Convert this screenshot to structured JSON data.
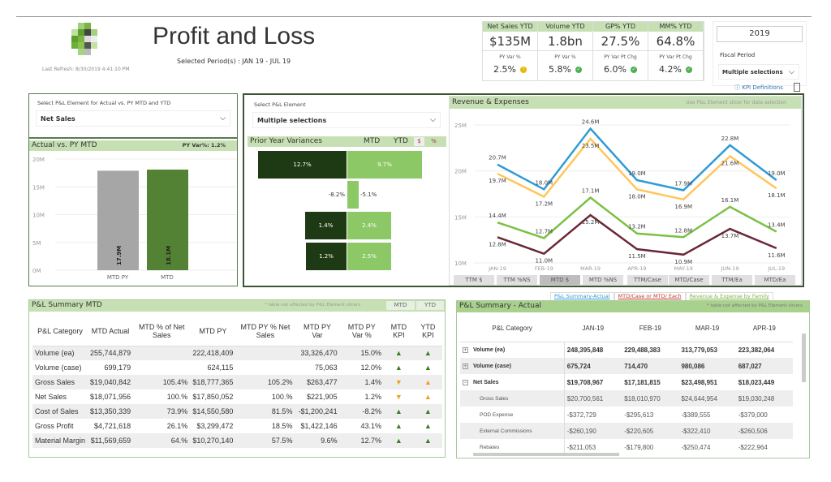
{
  "header": {
    "title": "Profit and Loss",
    "selected_period": "Selected Period(s) :  JAN 19 - JUL 19",
    "last_refresh": "Last Refresh: 8/30/2019 4:41:10 PM"
  },
  "kpis": [
    {
      "label": "Net Sales YTD",
      "value": "$135M",
      "sub": "PY Var %",
      "change": "2.5%",
      "status": "warning",
      "status_color": "#e8b800"
    },
    {
      "label": "Volume YTD",
      "value": "1.8bn",
      "sub": "PY Var %",
      "change": "5.8%",
      "status": "ok",
      "status_color": "#4caf50"
    },
    {
      "label": "GP% YTD",
      "value": "27.5%",
      "sub": "PY Var Pt Chg",
      "change": "6.0%",
      "status": "ok",
      "status_color": "#4caf50"
    },
    {
      "label": "MM% YTD",
      "value": "64.8%",
      "sub": "PY Var Pt Chg",
      "change": "4.2%",
      "status": "ok",
      "status_color": "#4caf50"
    }
  ],
  "filters": {
    "year": "2019",
    "fiscal_period_label": "Fiscal Period",
    "fiscal_period_value": "Multiple selections",
    "kpi_definitions": "KPI Definitions"
  },
  "actual_vs_py": {
    "slicer_label": "Select P&L Element for Actual vs. PY MTD and YTD",
    "slicer_value": "Net Sales",
    "title": "Actual vs. PY MTD",
    "py_var": "PY Var%: 1.2%"
  },
  "variances": {
    "slicer_label": "Select P&L Element",
    "slicer_value": "Multiple selections",
    "title": "Prior Year Variances",
    "col_mtd": "MTD",
    "col_ytd": "YTD",
    "toggle_dollar": "$",
    "toggle_pct": "%",
    "rows": [
      {
        "mtd": "12.7%",
        "ytd": "9.7%"
      },
      {
        "mtd": "-8.2%",
        "ytd": "-5.1%"
      },
      {
        "mtd": "1.4%",
        "ytd": "2.4%"
      },
      {
        "mtd": "1.2%",
        "ytd": "2.5%"
      }
    ]
  },
  "revenue": {
    "title": "Revenue & Expenses",
    "note": "Use P&L Element slicer for data selection",
    "buttons": [
      "TTM $",
      "TTM %NS",
      "MTD $",
      "MTD %NS",
      "TTM/Case",
      "MTD/Case",
      "TTM/Ea",
      "MTD/Ea"
    ],
    "active_button": "MTD $"
  },
  "chart_data": [
    {
      "type": "bar",
      "categories": [
        "MTD PY",
        "MTD"
      ],
      "values": [
        17.9,
        18.1
      ],
      "data_labels": [
        "17.9M",
        "18.1M"
      ],
      "y_ticks": [
        "0M",
        "5M",
        "10M",
        "15M",
        "20M"
      ],
      "ylim": [
        0,
        20
      ],
      "colors": [
        "#a6a6a6",
        "#548235"
      ],
      "grid": true
    },
    {
      "type": "line",
      "categories": [
        "JAN-19",
        "FEB-19",
        "MAR-19",
        "APR-19",
        "MAY-19",
        "JUN-19",
        "JUL-19"
      ],
      "y_ticks": [
        "10M",
        "15M",
        "20M",
        "25M"
      ],
      "ylim": [
        10,
        25
      ],
      "grid": true,
      "series": [
        {
          "values": [
            20.7,
            18.0,
            24.6,
            19.0,
            17.9,
            22.8,
            19.0
          ],
          "color": "#2e9bd6"
        },
        {
          "values": [
            19.7,
            17.2,
            23.5,
            18.0,
            16.9,
            21.6,
            18.1
          ],
          "color": "#ffc65c"
        },
        {
          "values": [
            14.4,
            12.7,
            17.1,
            13.2,
            12.8,
            16.1,
            13.4
          ],
          "color": "#7bc143"
        },
        {
          "values": [
            12.8,
            11.0,
            15.2,
            11.5,
            10.9,
            13.7,
            11.6
          ],
          "color": "#6b2737"
        }
      ]
    }
  ],
  "mtd_table": {
    "title": "P&L Summary MTD",
    "note": "* table not affected by P&L Element slicers",
    "tab_mtd": "MTD",
    "tab_ytd": "YTD",
    "headers": [
      "P&L Category",
      "MTD Actual",
      "MTD % of Net Sales",
      "MTD PY",
      "MTD PY % Net Sales",
      "MTD PY Var",
      "MTD PY Var %",
      "MTD KPI",
      "YTD KPI"
    ],
    "rows": [
      [
        "Volume (ea)",
        "255,744,879",
        "",
        "222,418,409",
        "",
        "33,326,470",
        "15.0%",
        "up",
        "up"
      ],
      [
        "Volume (case)",
        "699,179",
        "",
        "624,115",
        "",
        "75,063",
        "12.0%",
        "up",
        "up"
      ],
      [
        "Gross Sales",
        "$19,040,842",
        "105.4%",
        "$18,777,365",
        "105.2%",
        "$263,477",
        "1.4%",
        "down",
        "up-warn"
      ],
      [
        "Net Sales",
        "$18,071,956",
        "100.%",
        "$17,850,052",
        "100.%",
        "$221,905",
        "1.2%",
        "down",
        "up-warn"
      ],
      [
        "Cost of Sales",
        "$13,350,339",
        "73.9%",
        "$14,550,580",
        "81.5%",
        "-$1,200,241",
        "-8.2%",
        "up",
        "up"
      ],
      [
        "Gross Profit",
        "$4,721,618",
        "26.1%",
        "$3,299,472",
        "18.5%",
        "$1,422,146",
        "43.1%",
        "up",
        "up"
      ],
      [
        "Material Margin",
        "$11,569,659",
        "64.%",
        "$10,270,140",
        "57.5%",
        "9.6%",
        "12.7%",
        "up",
        "up"
      ]
    ]
  },
  "actual_table": {
    "tabs": [
      "P&L Summary-Actual",
      "MTD/Case or MTD/ Each",
      "Revenue & Expense by Family"
    ],
    "title": "P&L Summary - Actual",
    "note": "* table not affected by P&L Element slicers",
    "headers": [
      "P&L Category",
      "JAN-19",
      "FEB-19",
      "MAR-19",
      "APR-19"
    ],
    "rows": [
      {
        "cat": "Volume (ea)",
        "bold": true,
        "expand": "+",
        "vals": [
          "248,395,848",
          "229,488,383",
          "313,779,053",
          "223,382,064"
        ]
      },
      {
        "cat": "Volume (case)",
        "bold": true,
        "expand": "+",
        "vals": [
          "675,724",
          "714,470",
          "980,086",
          "687,027"
        ]
      },
      {
        "cat": "Net Sales",
        "bold": true,
        "expand": "−",
        "vals": [
          "$19,708,967",
          "$17,181,815",
          "$23,498,951",
          "$18,023,449"
        ]
      },
      {
        "cat": "Gross Sales",
        "bold": false,
        "expand": "",
        "vals": [
          "$20,700,561",
          "$18,010,970",
          "$24,644,954",
          "$19,030,248"
        ]
      },
      {
        "cat": "POD Expense",
        "bold": false,
        "expand": "",
        "vals": [
          "-$372,729",
          "-$295,613",
          "-$389,555",
          "-$379,000"
        ]
      },
      {
        "cat": "External Commissions",
        "bold": false,
        "expand": "",
        "vals": [
          "-$260,190",
          "-$220,605",
          "-$322,410",
          "-$260,506"
        ]
      },
      {
        "cat": "Rebates",
        "bold": false,
        "expand": "",
        "vals": [
          "-$211,053",
          "-$179,800",
          "-$250,474",
          "-$222,964"
        ]
      }
    ]
  }
}
